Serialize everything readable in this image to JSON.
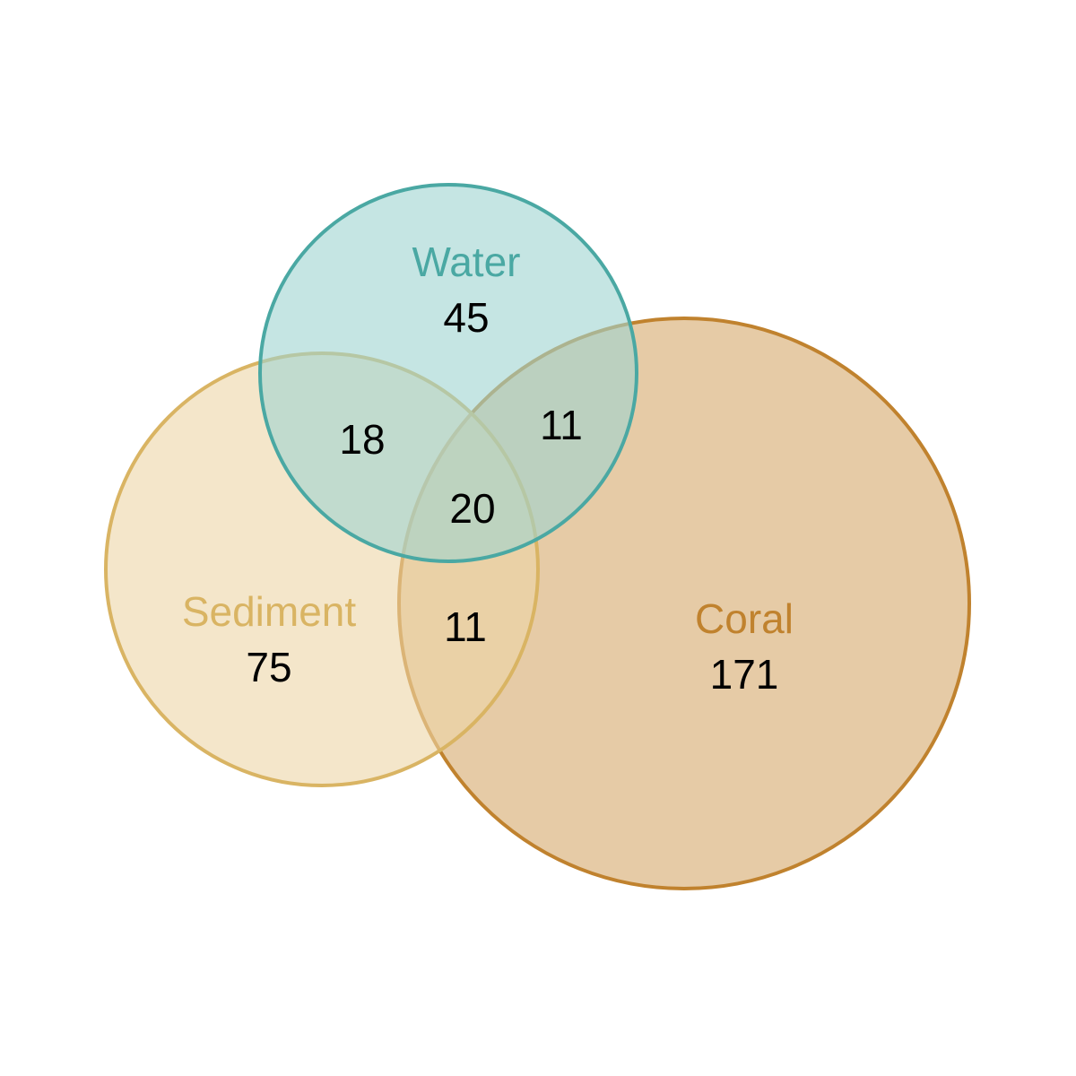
{
  "diagram": {
    "type": "venn",
    "sets": [
      {
        "name": "Water",
        "only_count": "45",
        "stroke_color": "#4aa8a3",
        "fill_color": "#9fd3d0"
      },
      {
        "name": "Sediment",
        "only_count": "75",
        "stroke_color": "#d9b463",
        "fill_color": "#ecd6a6"
      },
      {
        "name": "Coral",
        "only_count": "171",
        "stroke_color": "#c0822e",
        "fill_color": "#d5a96b"
      }
    ],
    "intersections": {
      "water_sediment": "18",
      "water_coral": "11",
      "sediment_coral": "11",
      "all_three": "20"
    }
  }
}
